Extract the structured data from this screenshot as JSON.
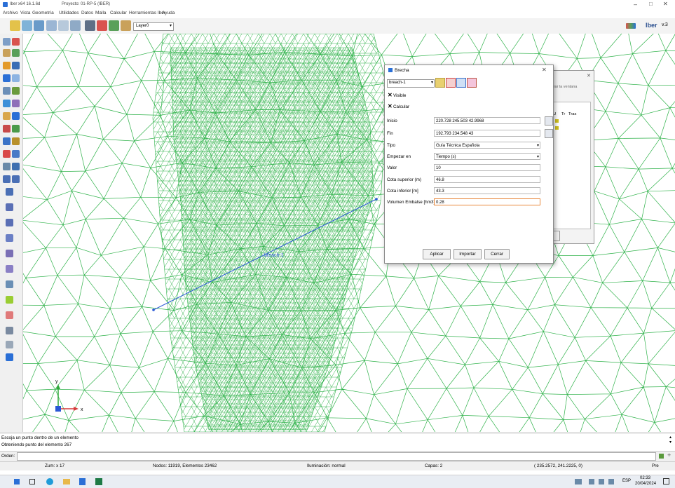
{
  "window": {
    "app_title": "Iber x64 16.1.6d",
    "project_title": "Proyecto: 01-RP-5 (IBER)",
    "controls": [
      "–",
      "□",
      "✕"
    ]
  },
  "menu": [
    "Archivo",
    "Vista",
    "Geometría",
    "Utilidades",
    "Datos",
    "Malla",
    "Calcular",
    "Herramientas Iber",
    "Ayuda"
  ],
  "toolbar": {
    "layer_value": "Layer0",
    "brand": "Iber",
    "version": "v.3"
  },
  "canvas": {
    "breach_label": "breach-1",
    "axis_x": "x",
    "axis_y": "y"
  },
  "dialog": {
    "title": "Brecha",
    "selected": "breach-1",
    "visible_label": "Visible",
    "calcular_label": "Calcular",
    "fields": [
      {
        "label": "Inicio",
        "value": "220.728 245.503 42.9968"
      },
      {
        "label": "Fin",
        "value": "192.793 234.548 43"
      },
      {
        "label": "Tipo",
        "value": "Guía Técnica Española"
      },
      {
        "label": "Empezar en",
        "value": "Tiempo (s)"
      },
      {
        "label": "Valor",
        "value": "10"
      },
      {
        "label": "Cota superior (m)",
        "value": "46.8"
      },
      {
        "label": "Cota inferior [m]",
        "value": "43.3"
      },
      {
        "label": "Volumen Embalse [hm3]",
        "value": "0.28"
      }
    ],
    "buttons": {
      "apply": "Aplicar",
      "import": "Importar",
      "close": "Cerrar"
    }
  },
  "dialog2": {
    "hint": "ntegrar la ventana",
    "columns": [
      "F/U",
      "Tr",
      "Tras"
    ],
    "button": "ar"
  },
  "command": {
    "line1": "Escoja un punto dentro de un elemento",
    "line2": "Obteniendo punto del elemento 267",
    "orden_label": "Orden:"
  },
  "status": {
    "zoom": "Zum: x 17",
    "nodes": "Nodos: 11919, Elementos 23462",
    "lighting": "Iluminación: normal",
    "layers": "Capas: 2",
    "coords": "( 235.2572, 241.2225, 0)",
    "mode": "Pre"
  },
  "taskbar": {
    "time": "02:33",
    "date": "20/04/2024",
    "lang": "ESP"
  },
  "colors": {
    "mesh": "#2fb24a",
    "breach_line": "#2a58d6",
    "field_focus": "#e8873a"
  }
}
